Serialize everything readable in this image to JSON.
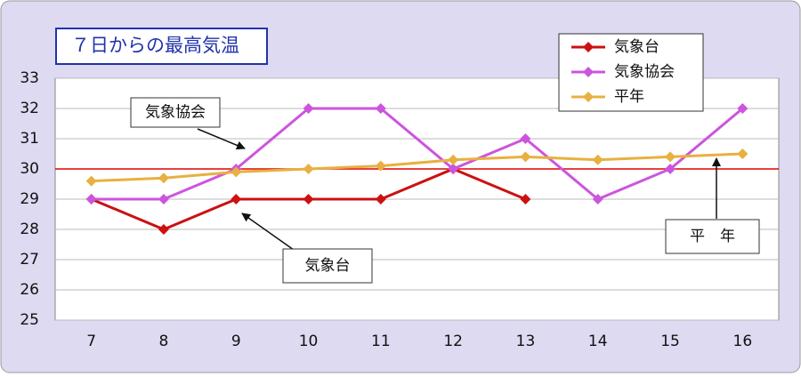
{
  "chart_data": {
    "type": "line",
    "title": "７日からの最高気温",
    "categories": [
      "7",
      "8",
      "9",
      "10",
      "11",
      "12",
      "13",
      "14",
      "15",
      "16"
    ],
    "series": [
      {
        "name": "気象台",
        "color": "#cc1111",
        "values": [
          29,
          28,
          29,
          29,
          29,
          30,
          29,
          null,
          null,
          null
        ]
      },
      {
        "name": "気象協会",
        "color": "#cc55dd",
        "values": [
          29,
          29,
          30,
          32,
          32,
          30,
          31,
          29,
          30,
          32
        ]
      },
      {
        "name": "平年",
        "color": "#e8b040",
        "values": [
          29.6,
          29.7,
          29.9,
          30,
          30.1,
          30.3,
          30.4,
          30.3,
          30.4,
          30.5
        ]
      }
    ],
    "ylim": [
      25,
      33
    ],
    "yticks": [
      25,
      26,
      27,
      28,
      29,
      30,
      31,
      32,
      33
    ],
    "grid": true,
    "reference_line": {
      "value": 30,
      "color": "#e00000"
    },
    "legend": "top-right",
    "annotations": [
      "気象協会",
      "気象台",
      "平　年"
    ]
  }
}
